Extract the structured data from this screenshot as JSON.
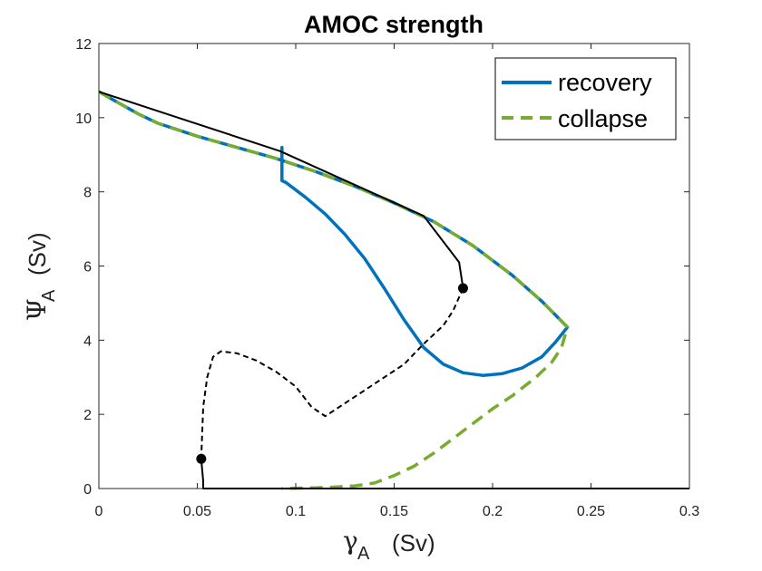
{
  "chart_data": {
    "type": "line",
    "title": "AMOC strength",
    "xlabel": {
      "symbol": "γ",
      "subscript": "A",
      "unit": "(Sv)"
    },
    "ylabel": {
      "symbol": "Ψ",
      "subscript": "A",
      "unit": "(Sv)"
    },
    "xlim": [
      0,
      0.3
    ],
    "ylim": [
      0,
      12
    ],
    "xticks": [
      0,
      0.05,
      0.1,
      0.15,
      0.2,
      0.25,
      0.3
    ],
    "xtick_labels": [
      "0",
      "0.05",
      "0.1",
      "0.15",
      "0.2",
      "0.25",
      "0.3"
    ],
    "yticks": [
      0,
      2,
      4,
      6,
      8,
      10,
      12
    ],
    "ytick_labels": [
      "0",
      "2",
      "4",
      "6",
      "8",
      "10",
      "12"
    ],
    "grid": false,
    "legend_position": "top-right",
    "series": [
      {
        "name": "recovery",
        "style": "solid",
        "color": "#0072BD",
        "x": [
          0,
          0.01,
          0.02,
          0.03,
          0.05,
          0.07,
          0.09,
          0.11,
          0.13,
          0.15,
          0.17,
          0.19,
          0.21,
          0.225,
          0.238,
          0.232,
          0.225,
          0.215,
          0.205,
          0.195,
          0.185,
          0.175,
          0.165,
          0.155,
          0.145,
          0.135,
          0.125,
          0.115,
          0.105,
          0.095,
          0.093,
          0.093,
          0.093
        ],
        "y": [
          10.7,
          10.4,
          10.1,
          9.85,
          9.5,
          9.2,
          8.9,
          8.55,
          8.15,
          7.7,
          7.2,
          6.55,
          5.75,
          5.05,
          4.35,
          3.95,
          3.55,
          3.25,
          3.1,
          3.05,
          3.12,
          3.35,
          3.8,
          4.55,
          5.4,
          6.2,
          6.85,
          7.4,
          7.85,
          8.25,
          8.3,
          9.2,
          8.8
        ]
      },
      {
        "name": "collapse",
        "style": "dashed",
        "color": "#77AC30",
        "x": [
          0,
          0.01,
          0.02,
          0.03,
          0.05,
          0.07,
          0.09,
          0.11,
          0.13,
          0.15,
          0.17,
          0.19,
          0.21,
          0.225,
          0.238,
          0.235,
          0.23,
          0.222,
          0.21,
          0.2,
          0.19,
          0.18,
          0.17,
          0.16,
          0.15,
          0.14,
          0.13,
          0.12,
          0.11,
          0.1,
          0.093
        ],
        "y": [
          10.7,
          10.4,
          10.1,
          9.85,
          9.5,
          9.2,
          8.9,
          8.55,
          8.15,
          7.7,
          7.2,
          6.55,
          5.75,
          5.05,
          4.35,
          3.8,
          3.4,
          3.0,
          2.5,
          2.15,
          1.75,
          1.35,
          0.95,
          0.6,
          0.35,
          0.15,
          0.07,
          0.04,
          0.02,
          0.01,
          0.0
        ]
      },
      {
        "style": "solid",
        "color": "#000000",
        "x": [
          0,
          0.092,
          0.165,
          0.183,
          0.185
        ],
        "y": [
          10.7,
          9.1,
          7.35,
          6.1,
          5.4
        ]
      },
      {
        "style": "dashed",
        "color": "#000000",
        "x": [
          0.185,
          0.18,
          0.175,
          0.165,
          0.155,
          0.145,
          0.135,
          0.125,
          0.115,
          0.108,
          0.1,
          0.09,
          0.08,
          0.07,
          0.062,
          0.058,
          0.055,
          0.053,
          0.052
        ],
        "y": [
          5.4,
          4.8,
          4.4,
          3.9,
          3.35,
          3.0,
          2.65,
          2.3,
          1.95,
          2.2,
          2.75,
          3.15,
          3.45,
          3.65,
          3.7,
          3.55,
          3.0,
          2.2,
          0.8
        ]
      },
      {
        "style": "solid",
        "color": "#000000",
        "x": [
          0.052,
          0.053,
          0.053,
          0.3
        ],
        "y": [
          0.8,
          0.2,
          0.0,
          0.0
        ]
      }
    ],
    "points": [
      {
        "x": 0.052,
        "y": 0.8,
        "color": "#000000"
      },
      {
        "x": 0.185,
        "y": 5.4,
        "color": "#000000"
      }
    ]
  }
}
